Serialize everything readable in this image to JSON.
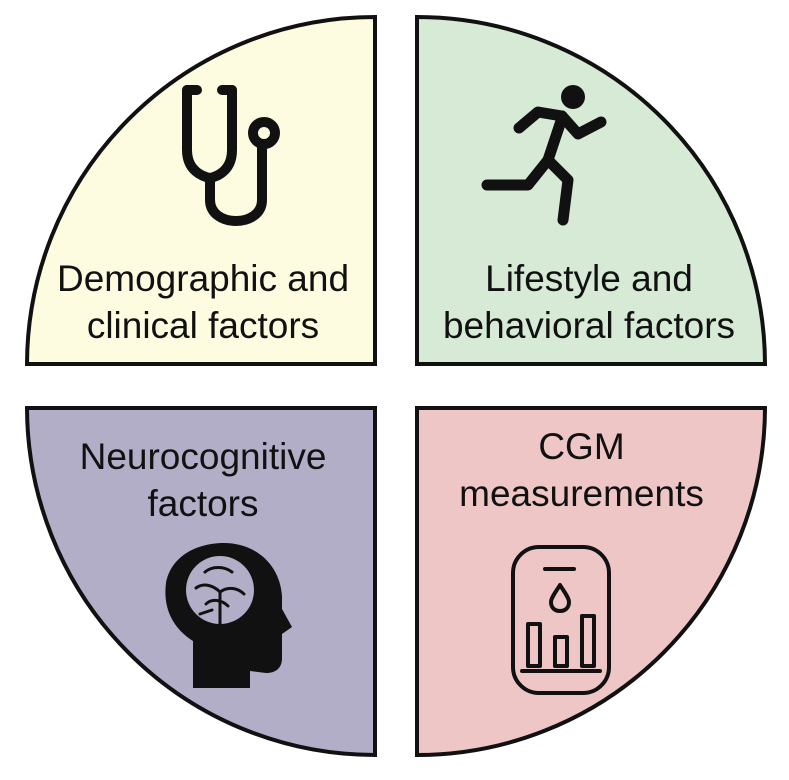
{
  "quadrants": {
    "top_left": {
      "line1": "Demographic and",
      "line2": "clinical factors",
      "color": "#fdfbe0",
      "icon": "stethoscope-icon"
    },
    "top_right": {
      "line1": "Lifestyle and",
      "line2": "behavioral factors",
      "color": "#d6ead6",
      "icon": "running-person-icon"
    },
    "bottom_left": {
      "line1": "Neurocognitive",
      "line2": "factors",
      "color": "#b3aec8",
      "icon": "brain-head-icon"
    },
    "bottom_right": {
      "line1": "CGM",
      "line2": "measurements",
      "color": "#efc6c6",
      "icon": "glucose-monitor-icon"
    }
  },
  "outline_color": "#111111"
}
